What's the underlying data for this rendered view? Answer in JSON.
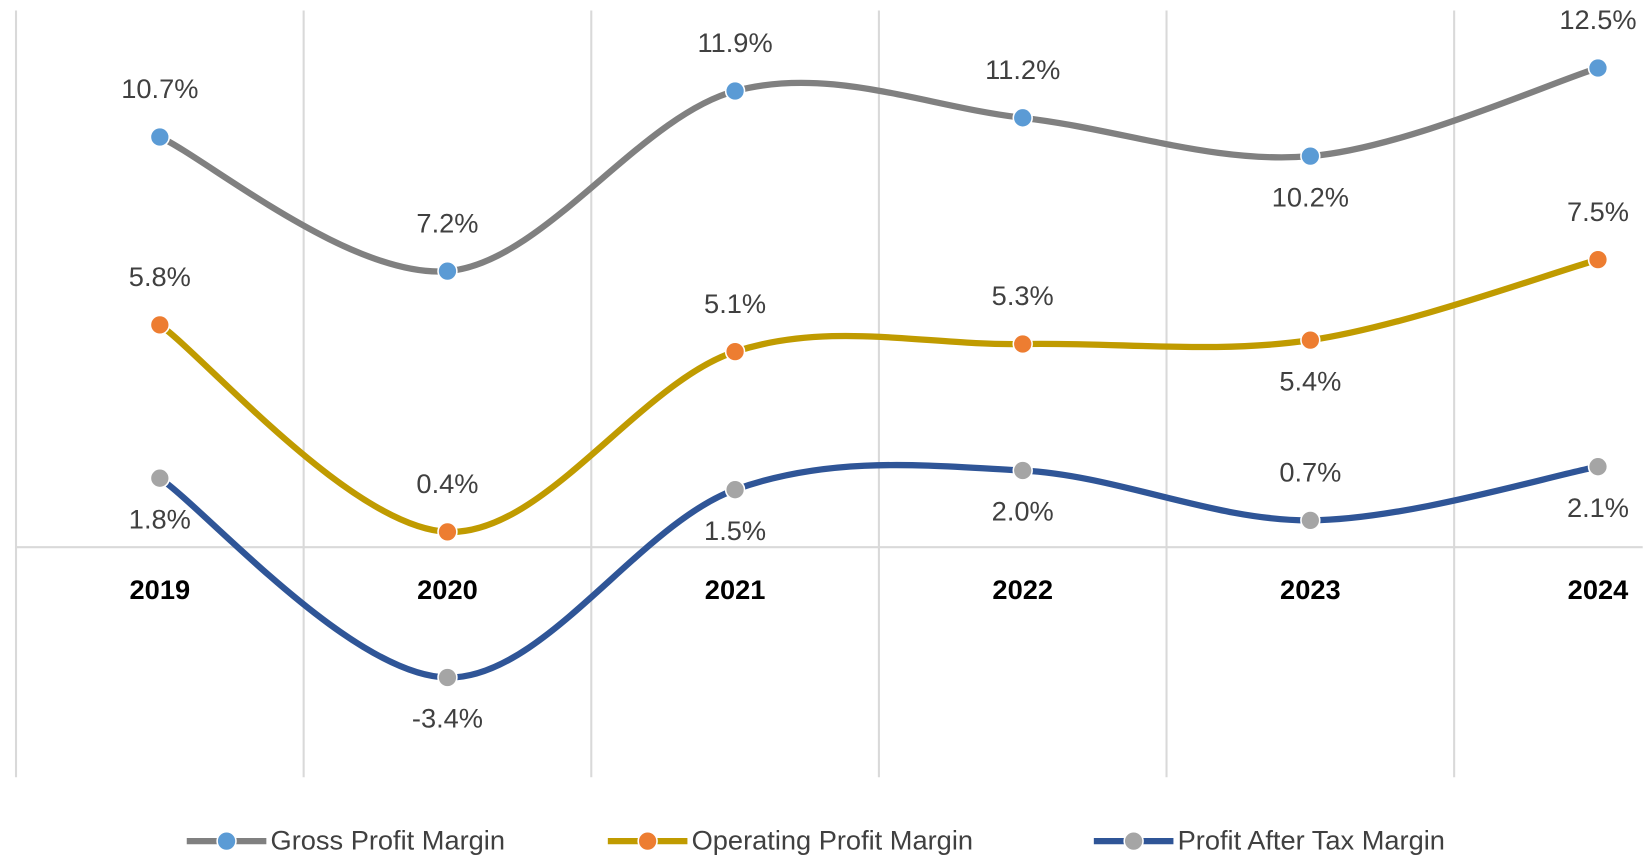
{
  "chart_data": {
    "type": "line",
    "categories": [
      "2019",
      "2020",
      "2021",
      "2022",
      "2023",
      "2024"
    ],
    "ylim": [
      -6,
      14
    ],
    "smooth": true,
    "legend": "bottom",
    "series": [
      {
        "name": "Gross Profit Margin",
        "color": "#808080",
        "marker_color": "#5b9bd5",
        "values": [
          10.7,
          7.2,
          11.9,
          11.2,
          10.2,
          12.5
        ],
        "value_labels": [
          "10.7%",
          "7.2%",
          "11.9%",
          "11.2%",
          "10.2%",
          "12.5%"
        ]
      },
      {
        "name": "Operating Profit Margin",
        "color": "#c09b00",
        "marker_color": "#ed7d31",
        "values": [
          5.8,
          0.4,
          5.1,
          5.3,
          5.4,
          7.5
        ],
        "value_labels": [
          "5.8%",
          "0.4%",
          "5.1%",
          "5.3%",
          "5.4%",
          "7.5%"
        ]
      },
      {
        "name": "Profit After Tax Margin",
        "color": "#2f5597",
        "marker_color": "#a5a5a5",
        "values": [
          1.8,
          -3.4,
          1.5,
          2.0,
          0.7,
          2.1
        ],
        "value_labels": [
          "1.8%",
          "-3.4%",
          "1.5%",
          "2.0%",
          "0.7%",
          "2.1%"
        ]
      }
    ]
  }
}
